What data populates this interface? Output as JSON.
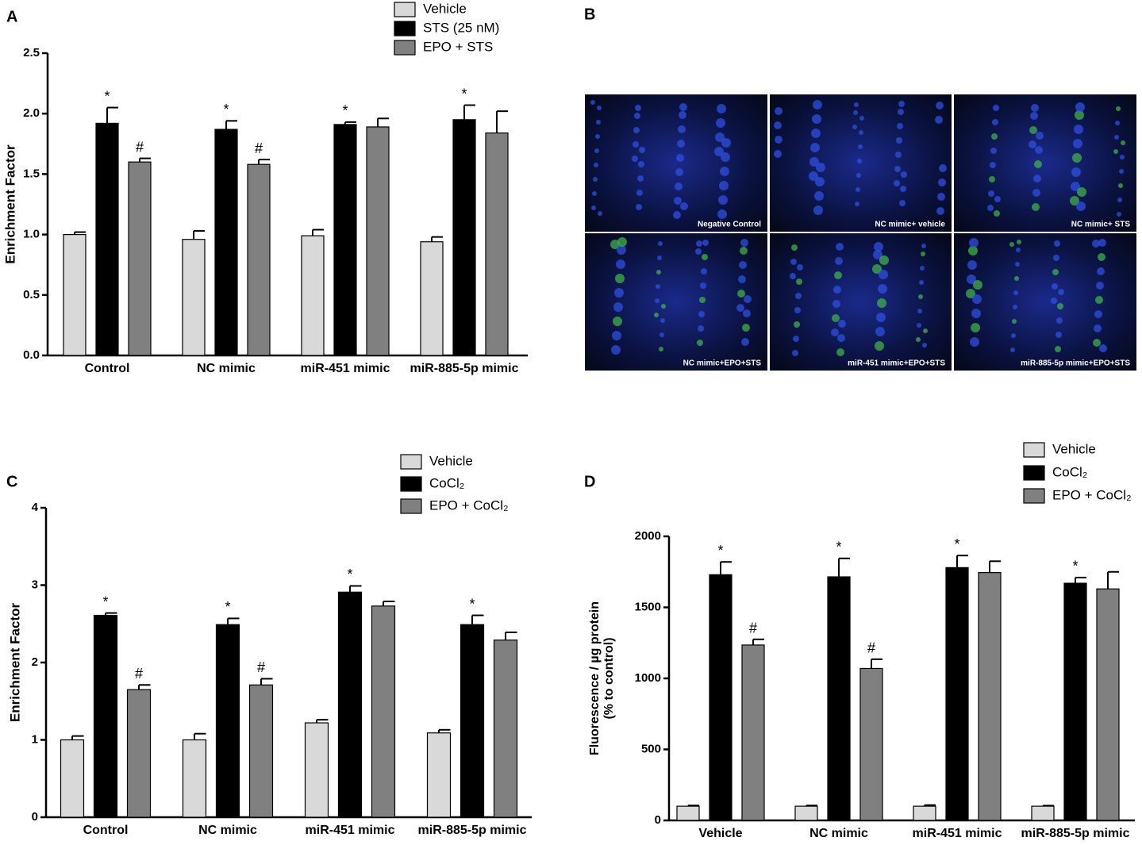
{
  "chart_data": [
    {
      "type": "bar",
      "panel": "A",
      "ylabel": "Enrichment Factor",
      "categories": [
        "Control",
        "NC mimic",
        "miR-451 mimic",
        "miR-885-5p mimic"
      ],
      "ylim": [
        0,
        2.5
      ],
      "yticks": [
        {
          "value": 0,
          "label": "0.0"
        },
        0.5,
        {
          "value": 1,
          "label": "1.0"
        },
        1.5,
        {
          "value": 2,
          "label": "2.0"
        },
        2.5
      ],
      "series": [
        {
          "name": "Vehicle",
          "color": "#d9d9d9",
          "values": [
            1.0,
            0.96,
            0.99,
            0.94
          ],
          "errors": [
            0.02,
            0.07,
            0.05,
            0.04
          ],
          "annotations": [
            null,
            null,
            null,
            null
          ]
        },
        {
          "name": "STS (25 nM)",
          "color": "#000000",
          "values": [
            1.92,
            1.87,
            1.91,
            1.95
          ],
          "errors": [
            0.13,
            0.07,
            0.02,
            0.12
          ],
          "annotations": [
            "*",
            "*",
            "*",
            "*"
          ]
        },
        {
          "name": "EPO + STS",
          "color": "#808080",
          "values": [
            1.6,
            1.58,
            1.89,
            1.84
          ],
          "errors": [
            0.03,
            0.04,
            0.07,
            0.18
          ],
          "annotations": [
            "#",
            "#",
            null,
            null
          ]
        }
      ]
    },
    {
      "type": "bar",
      "panel": "C",
      "ylabel": "Enrichment Factor",
      "categories": [
        "Control",
        "NC mimic",
        "miR-451 mimic",
        "miR-885-5p mimic"
      ],
      "ylim": [
        0,
        4
      ],
      "yticks": [
        0,
        1,
        2,
        3,
        4
      ],
      "series": [
        {
          "name": "Vehicle",
          "color": "#d9d9d9",
          "values": [
            1.0,
            1.0,
            1.22,
            1.09
          ],
          "errors": [
            0.05,
            0.08,
            0.04,
            0.04
          ],
          "annotations": [
            null,
            null,
            null,
            null
          ]
        },
        {
          "name": "CoCl₂",
          "color": "#000000",
          "values": [
            2.61,
            2.49,
            2.91,
            2.49
          ],
          "errors": [
            0.03,
            0.08,
            0.08,
            0.12
          ],
          "annotations": [
            "*",
            "*",
            "*",
            "*"
          ]
        },
        {
          "name": "EPO + CoCl₂",
          "color": "#808080",
          "values": [
            1.65,
            1.71,
            2.73,
            2.29
          ],
          "errors": [
            0.06,
            0.08,
            0.06,
            0.1
          ],
          "annotations": [
            "#",
            "#",
            null,
            null
          ]
        }
      ]
    },
    {
      "type": "bar",
      "panel": "D",
      "ylabel": [
        "Fluorescence / µg protein",
        "(% to control)"
      ],
      "categories": [
        "Vehicle",
        "NC mimic",
        "miR-451 mimic",
        "miR-885-5p mimic"
      ],
      "ylim": [
        0,
        2000
      ],
      "yticks": [
        0,
        500,
        1000,
        1500,
        2000
      ],
      "series": [
        {
          "name": "Vehicle",
          "color": "#d9d9d9",
          "values": [
            100,
            100,
            100,
            100
          ],
          "errors": [
            5,
            5,
            8,
            4
          ],
          "annotations": [
            null,
            null,
            null,
            null
          ]
        },
        {
          "name": "CoCl₂",
          "color": "#000000",
          "values": [
            1730,
            1715,
            1780,
            1670
          ],
          "errors": [
            90,
            130,
            85,
            40
          ],
          "annotations": [
            "*",
            "*",
            "*",
            "*"
          ]
        },
        {
          "name": "EPO + CoCl₂",
          "color": "#808080",
          "values": [
            1235,
            1070,
            1745,
            1630
          ],
          "errors": [
            40,
            65,
            80,
            120
          ],
          "annotations": [
            "#",
            "#",
            null,
            null
          ]
        }
      ]
    }
  ],
  "panel_b": {
    "panel": "B",
    "images": [
      "Negative Control",
      "NC mimic+ vehicle",
      "NC mimic+ STS",
      "NC mimic+EPO+STS",
      "miR-451 mimic+EPO+STS",
      "miR-885-5p mimic+EPO+STS"
    ]
  }
}
